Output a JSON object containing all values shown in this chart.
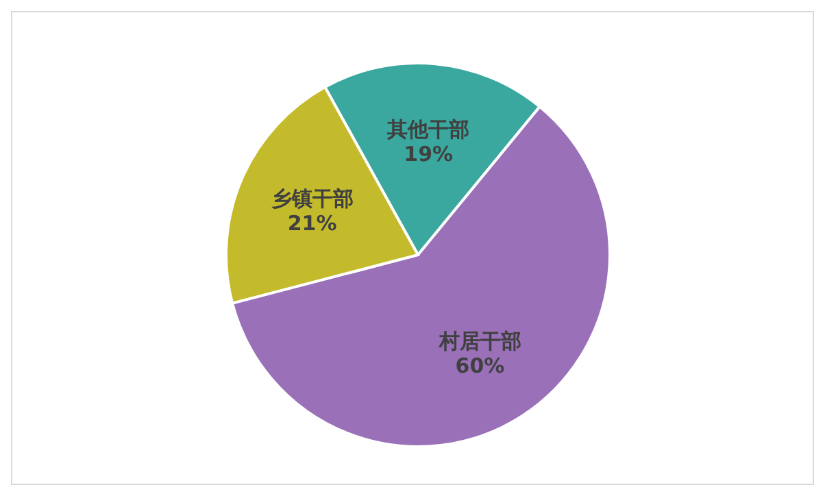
{
  "chart_data": {
    "type": "pie",
    "categories": [
      "其他干部",
      "村居干部",
      "乡镇干部"
    ],
    "values": [
      19,
      60,
      21
    ],
    "value_labels": [
      "19%",
      "60%",
      "21%"
    ],
    "colors": [
      "#3aa89f",
      "#9a70b8",
      "#c4bb2c"
    ]
  }
}
